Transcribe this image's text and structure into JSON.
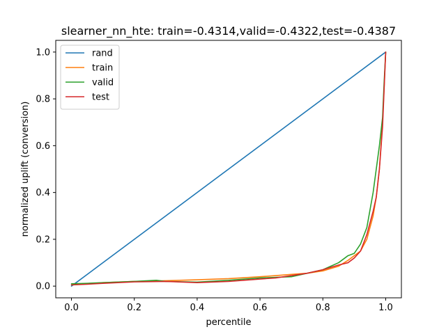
{
  "chart_data": {
    "type": "line",
    "title": "slearner_nn_hte: train=-0.4314,valid=-0.4322,test=-0.4387",
    "xlabel": "percentile",
    "ylabel": "normalized uplift (conversion)",
    "xlim": [
      -0.05,
      1.05
    ],
    "ylim": [
      -0.05,
      1.05
    ],
    "xticks": [
      "0.0",
      "0.2",
      "0.4",
      "0.6",
      "0.8",
      "1.0"
    ],
    "yticks": [
      "0.0",
      "0.2",
      "0.4",
      "0.6",
      "0.8",
      "1.0"
    ],
    "grid": false,
    "legend_position": "top-left",
    "series": [
      {
        "name": "rand",
        "color": "#1f77b4",
        "x": [
          0.0,
          1.0
        ],
        "y": [
          0.0,
          1.0
        ]
      },
      {
        "name": "train",
        "color": "#ff7f0e",
        "x": [
          0.0,
          0.05,
          0.1,
          0.2,
          0.3,
          0.4,
          0.5,
          0.6,
          0.65,
          0.7,
          0.75,
          0.8,
          0.85,
          0.88,
          0.9,
          0.92,
          0.94,
          0.96,
          0.97,
          0.98,
          0.99,
          0.995,
          1.0
        ],
        "y": [
          0.005,
          0.01,
          0.015,
          0.02,
          0.023,
          0.027,
          0.032,
          0.04,
          0.045,
          0.05,
          0.055,
          0.065,
          0.085,
          0.11,
          0.13,
          0.15,
          0.2,
          0.3,
          0.38,
          0.5,
          0.7,
          0.85,
          1.0
        ]
      },
      {
        "name": "valid",
        "color": "#2ca02c",
        "x": [
          0.0,
          0.05,
          0.1,
          0.2,
          0.27,
          0.3,
          0.4,
          0.5,
          0.6,
          0.7,
          0.75,
          0.8,
          0.85,
          0.88,
          0.9,
          0.92,
          0.94,
          0.96,
          0.97,
          0.98,
          0.99,
          0.995,
          1.0
        ],
        "y": [
          0.01,
          0.012,
          0.015,
          0.02,
          0.025,
          0.02,
          0.017,
          0.025,
          0.035,
          0.04,
          0.055,
          0.07,
          0.1,
          0.13,
          0.14,
          0.18,
          0.25,
          0.4,
          0.5,
          0.6,
          0.72,
          0.87,
          1.0
        ]
      },
      {
        "name": "test",
        "color": "#d62728",
        "x": [
          0.0,
          0.05,
          0.1,
          0.2,
          0.3,
          0.4,
          0.5,
          0.6,
          0.65,
          0.7,
          0.75,
          0.8,
          0.85,
          0.88,
          0.9,
          0.92,
          0.94,
          0.96,
          0.97,
          0.98,
          0.99,
          0.995,
          1.0
        ],
        "y": [
          0.005,
          0.008,
          0.012,
          0.018,
          0.02,
          0.015,
          0.02,
          0.03,
          0.035,
          0.045,
          0.055,
          0.07,
          0.09,
          0.1,
          0.12,
          0.15,
          0.22,
          0.32,
          0.38,
          0.5,
          0.68,
          0.84,
          1.0
        ]
      }
    ]
  }
}
